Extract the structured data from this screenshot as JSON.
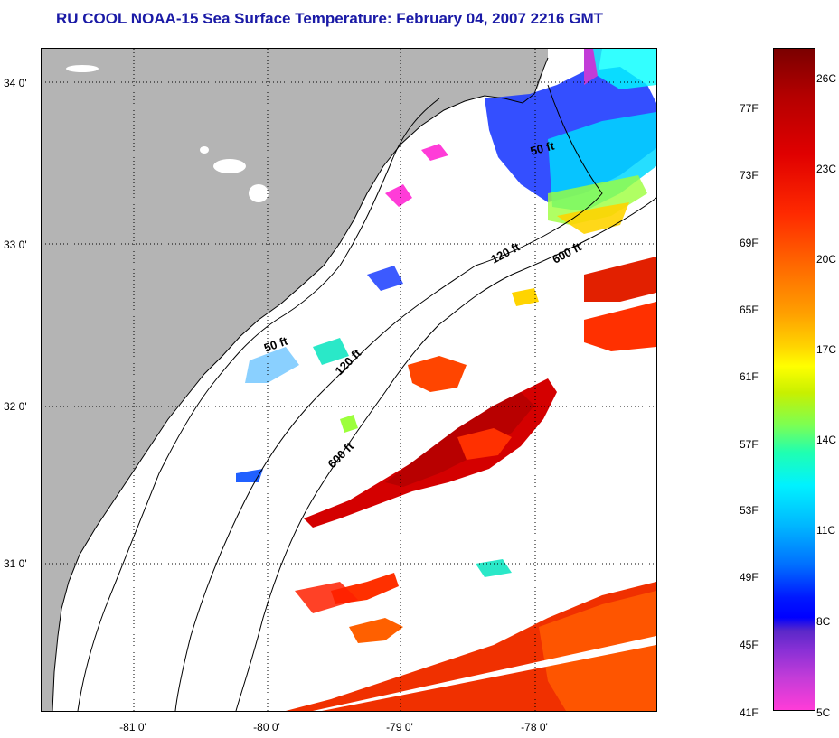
{
  "title": "RU COOL  NOAA-15  Sea Surface Temperature:  February 04, 2007 2216 GMT",
  "map": {
    "latitude_labels": [
      "34 0'",
      "33 0'",
      "32 0'",
      "31 0'"
    ],
    "longitude_labels": [
      "-81 0'",
      "-80 0'",
      "-79 0'",
      "-78 0'"
    ],
    "isobath_labels": [
      "50 ft",
      "120 ft",
      "600 ft",
      "50 ft",
      "120 ft",
      "600 ft"
    ],
    "colors": {
      "land": "#b4b4b4",
      "ocean_no_data": "#ffffff",
      "grid": "#000000"
    }
  },
  "colorbar": {
    "fahrenheit_labels": [
      "77F",
      "73F",
      "69F",
      "65F",
      "61F",
      "57F",
      "53F",
      "49F",
      "45F",
      "41F"
    ],
    "celsius_labels": [
      "26C",
      "23C",
      "20C",
      "17C",
      "14C",
      "11C",
      "8C",
      "5C"
    ]
  }
}
